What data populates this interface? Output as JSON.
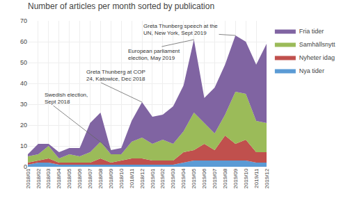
{
  "chart_data": {
    "type": "area",
    "stacked": true,
    "title": "Number of articles per month sorted by publication",
    "categories": [
      "2018/01",
      "2018/02",
      "2018/03",
      "2018/04",
      "2018/05",
      "2018/06",
      "2018/07",
      "2018/08",
      "2018/09",
      "2018/10",
      "2018/11",
      "2018/12",
      "2019/01",
      "2019/02",
      "2019/03",
      "2019/04",
      "2019/05",
      "2019/06",
      "2019/07",
      "2019/08",
      "2019/09",
      "2019/10",
      "2019/11",
      "2019/12"
    ],
    "series": [
      {
        "name": "Nya tider",
        "color": "#5b9bd5",
        "values": [
          1,
          2,
          2,
          1,
          1,
          1,
          1,
          1,
          1,
          1,
          1,
          1,
          1,
          1,
          1,
          2,
          3,
          3,
          3,
          3,
          3,
          3,
          2,
          2
        ]
      },
      {
        "name": "Nyheter idag",
        "color": "#c0504d",
        "values": [
          1,
          1,
          2,
          1,
          1,
          1,
          1,
          3,
          1,
          2,
          3,
          3,
          2,
          2,
          2,
          5,
          5,
          8,
          5,
          12,
          8,
          10,
          5,
          5
        ]
      },
      {
        "name": "Samhällsnytt",
        "color": "#9bbb59",
        "values": [
          3,
          3,
          6,
          2,
          4,
          3,
          5,
          8,
          4,
          3,
          8,
          10,
          8,
          10,
          8,
          10,
          18,
          10,
          8,
          10,
          25,
          22,
          15,
          14
        ]
      },
      {
        "name": "Fria tider",
        "color": "#8064a2",
        "values": [
          1,
          5,
          1,
          3,
          3,
          4,
          14,
          14,
          2,
          3,
          10,
          17,
          13,
          12,
          18,
          22,
          35,
          12,
          22,
          24,
          27,
          25,
          27,
          38
        ]
      }
    ],
    "ylim": [
      0,
      70
    ],
    "yticks": [
      0,
      10,
      20,
      30,
      40,
      50,
      60,
      70
    ],
    "grid": true,
    "legend": "right",
    "annotations": [
      {
        "text": "Swedish election,\nSept 2018",
        "x": "2018/09",
        "y": 8
      },
      {
        "text": "Greta Thunberg at COP\n24, Katowice, Dec 2018",
        "x": "2018/12",
        "y": 31
      },
      {
        "text": "European parliament\nelection, May 2019",
        "x": "2019/05",
        "y": 61
      },
      {
        "text": "Greta Thunberg speech at the\nUN, New York, Sept 2019",
        "x": "2019/09",
        "y": 63
      }
    ]
  }
}
